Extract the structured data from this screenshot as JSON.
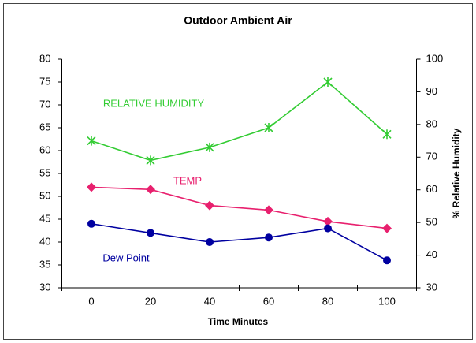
{
  "chart_data": {
    "type": "line",
    "title": "Outdoor Ambient Air",
    "x_label": "Time Minutes",
    "y2_label": "% Relative Humidity",
    "categories": [
      "0",
      "20",
      "40",
      "60",
      "80",
      "100"
    ],
    "series": [
      {
        "name": "RELATIVE HUMIDITY",
        "color": "#33cc33",
        "marker": "asterisk",
        "axis": "y2",
        "values": [
          75,
          69,
          73,
          79,
          93,
          77
        ]
      },
      {
        "name": "TEMP",
        "color": "#e8206e",
        "marker": "diamond",
        "values": [
          52,
          51.5,
          48,
          47,
          44.5,
          43
        ]
      },
      {
        "name": "Dew Point",
        "color": "#0000a0",
        "marker": "circle",
        "values": [
          44,
          42,
          40,
          41,
          43,
          36
        ]
      }
    ],
    "ylim": [
      30,
      80
    ],
    "yticks": [
      30,
      35,
      40,
      45,
      50,
      55,
      60,
      65,
      70,
      75,
      80
    ],
    "y2lim": [
      30,
      100
    ],
    "y2ticks": [
      30,
      40,
      50,
      60,
      70,
      80,
      90,
      100
    ]
  }
}
